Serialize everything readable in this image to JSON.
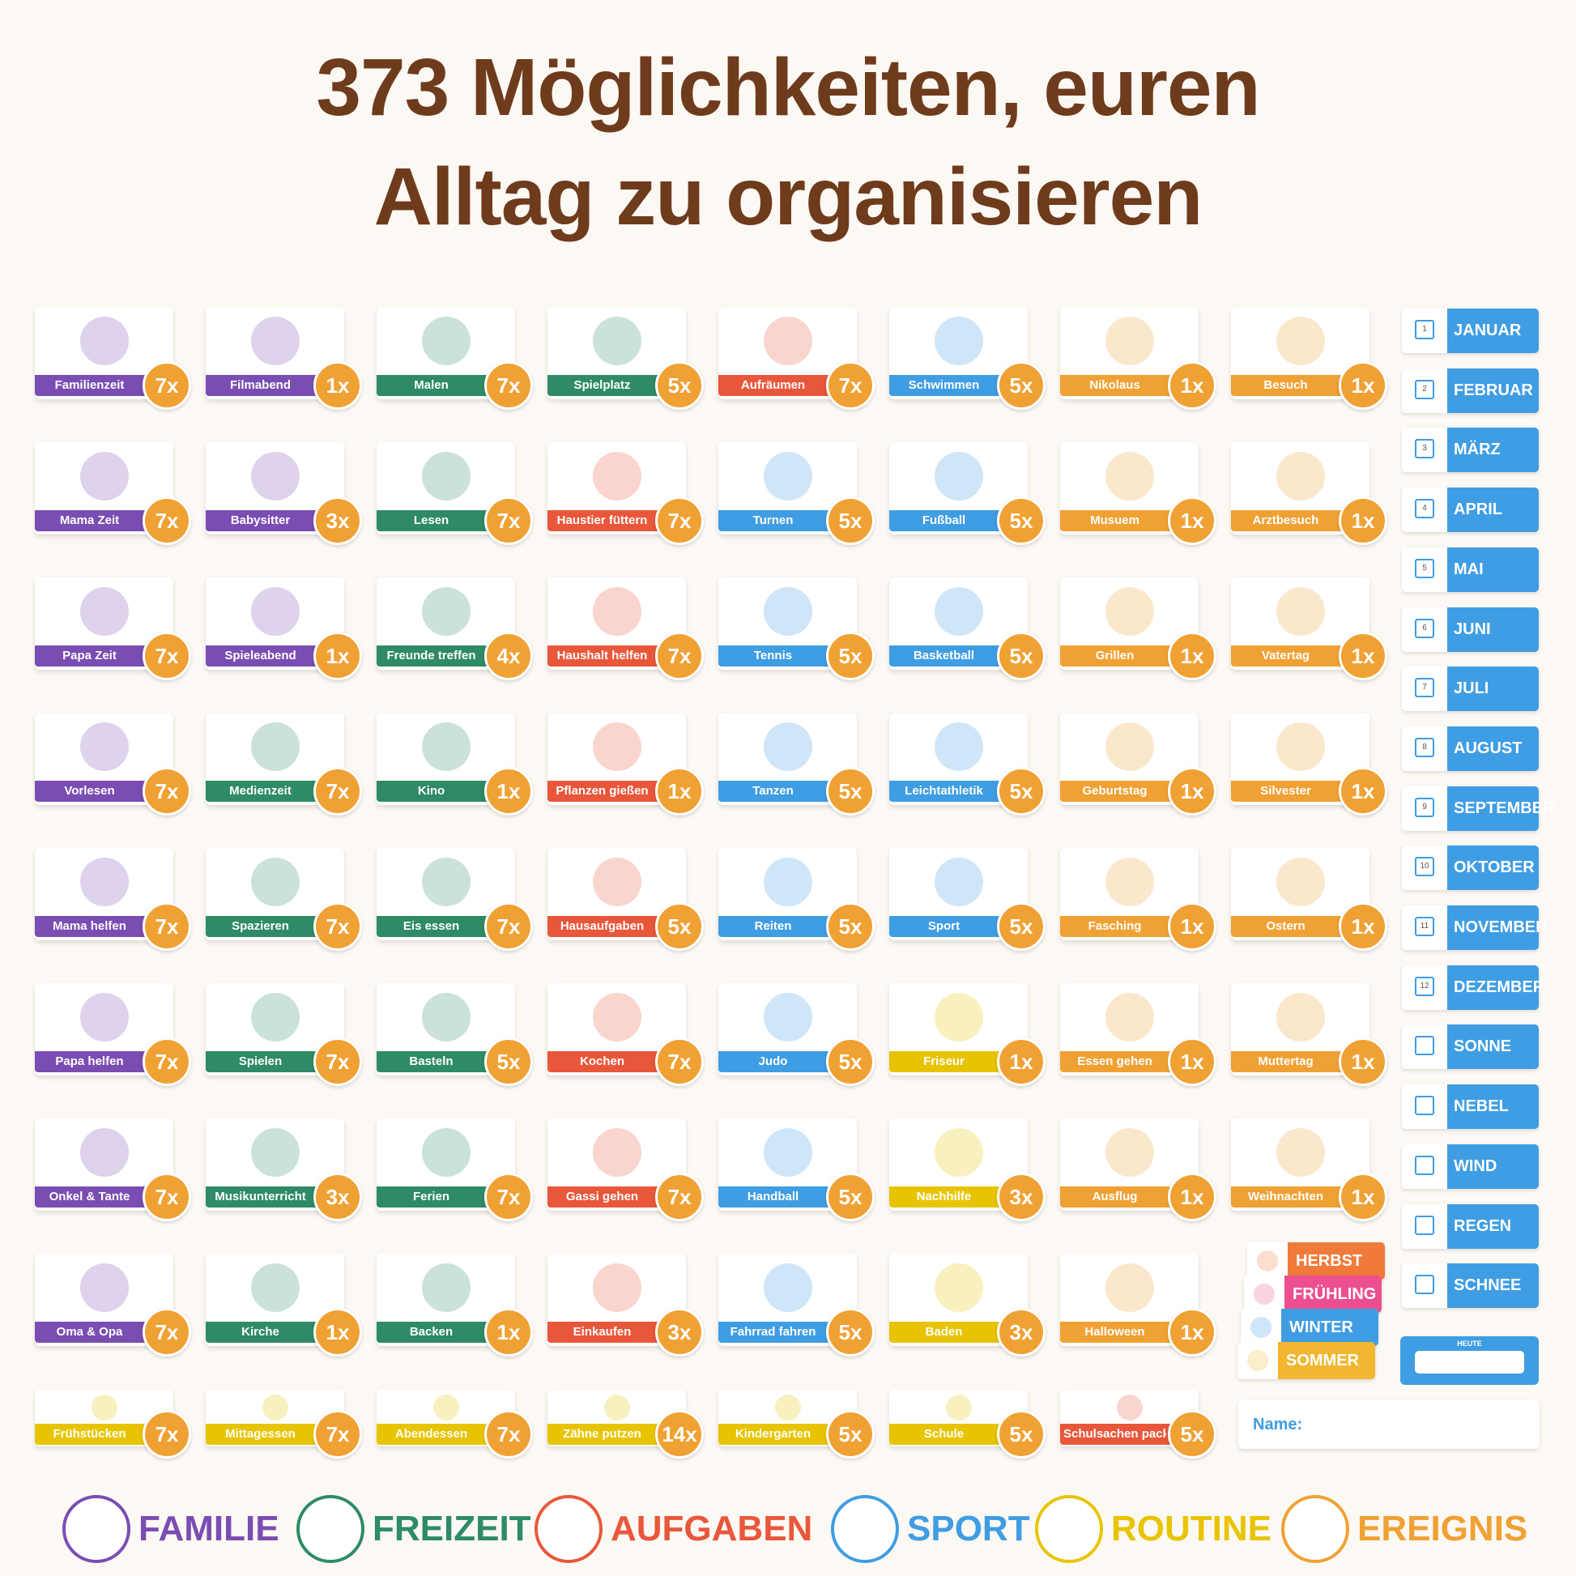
{
  "title_lines": [
    "373 Möglichkeiten, euren",
    "Alltag zu organisieren"
  ],
  "badge_color": "#f0a134",
  "card_rows": [
    [
      {
        "label": "Familienzeit",
        "count": "7x",
        "color": "#7a4db3"
      },
      {
        "label": "Filmabend",
        "count": "1x",
        "color": "#7a4db3"
      },
      {
        "label": "Malen",
        "count": "7x",
        "color": "#2e8b66"
      },
      {
        "label": "Spielplatz",
        "count": "5x",
        "color": "#2e8b66"
      },
      {
        "label": "Aufräumen",
        "count": "7x",
        "color": "#e9573b"
      },
      {
        "label": "Schwimmen",
        "count": "5x",
        "color": "#3f9de3"
      },
      {
        "label": "Nikolaus",
        "count": "1x",
        "color": "#f0a134"
      },
      {
        "label": "Besuch",
        "count": "1x",
        "color": "#f0a134"
      }
    ],
    [
      {
        "label": "Mama Zeit",
        "count": "7x",
        "color": "#7a4db3"
      },
      {
        "label": "Babysitter",
        "count": "3x",
        "color": "#7a4db3"
      },
      {
        "label": "Lesen",
        "count": "7x",
        "color": "#2e8b66"
      },
      {
        "label": "Haustier füttern",
        "count": "7x",
        "color": "#e9573b"
      },
      {
        "label": "Turnen",
        "count": "5x",
        "color": "#3f9de3"
      },
      {
        "label": "Fußball",
        "count": "5x",
        "color": "#3f9de3"
      },
      {
        "label": "Musuem",
        "count": "1x",
        "color": "#f0a134"
      },
      {
        "label": "Arztbesuch",
        "count": "1x",
        "color": "#f0a134"
      }
    ],
    [
      {
        "label": "Papa Zeit",
        "count": "7x",
        "color": "#7a4db3"
      },
      {
        "label": "Spieleabend",
        "count": "1x",
        "color": "#7a4db3"
      },
      {
        "label": "Freunde treffen",
        "count": "4x",
        "color": "#2e8b66"
      },
      {
        "label": "Haushalt helfen",
        "count": "7x",
        "color": "#e9573b"
      },
      {
        "label": "Tennis",
        "count": "5x",
        "color": "#3f9de3"
      },
      {
        "label": "Basketball",
        "count": "5x",
        "color": "#3f9de3"
      },
      {
        "label": "Grillen",
        "count": "1x",
        "color": "#f0a134"
      },
      {
        "label": "Vatertag",
        "count": "1x",
        "color": "#f0a134"
      }
    ],
    [
      {
        "label": "Vorlesen",
        "count": "7x",
        "color": "#7a4db3"
      },
      {
        "label": "Medienzeit",
        "count": "7x",
        "color": "#2e8b66"
      },
      {
        "label": "Kino",
        "count": "1x",
        "color": "#2e8b66"
      },
      {
        "label": "Pflanzen gießen",
        "count": "1x",
        "color": "#e9573b"
      },
      {
        "label": "Tanzen",
        "count": "5x",
        "color": "#3f9de3"
      },
      {
        "label": "Leichtathletik",
        "count": "5x",
        "color": "#3f9de3"
      },
      {
        "label": "Geburtstag",
        "count": "1x",
        "color": "#f0a134"
      },
      {
        "label": "Silvester",
        "count": "1x",
        "color": "#f0a134"
      }
    ],
    [
      {
        "label": "Mama helfen",
        "count": "7x",
        "color": "#7a4db3"
      },
      {
        "label": "Spazieren",
        "count": "7x",
        "color": "#2e8b66"
      },
      {
        "label": "Eis essen",
        "count": "7x",
        "color": "#2e8b66"
      },
      {
        "label": "Hausaufgaben",
        "count": "5x",
        "color": "#e9573b"
      },
      {
        "label": "Reiten",
        "count": "5x",
        "color": "#3f9de3"
      },
      {
        "label": "Sport",
        "count": "5x",
        "color": "#3f9de3"
      },
      {
        "label": "Fasching",
        "count": "1x",
        "color": "#f0a134"
      },
      {
        "label": "Ostern",
        "count": "1x",
        "color": "#f0a134"
      }
    ],
    [
      {
        "label": "Papa helfen",
        "count": "7x",
        "color": "#7a4db3"
      },
      {
        "label": "Spielen",
        "count": "7x",
        "color": "#2e8b66"
      },
      {
        "label": "Basteln",
        "count": "5x",
        "color": "#2e8b66"
      },
      {
        "label": "Kochen",
        "count": "7x",
        "color": "#e9573b"
      },
      {
        "label": "Judo",
        "count": "5x",
        "color": "#3f9de3"
      },
      {
        "label": "Friseur",
        "count": "1x",
        "color": "#e8c400"
      },
      {
        "label": "Essen gehen",
        "count": "1x",
        "color": "#f0a134"
      },
      {
        "label": "Muttertag",
        "count": "1x",
        "color": "#f0a134"
      }
    ],
    [
      {
        "label": "Onkel & Tante",
        "count": "7x",
        "color": "#7a4db3"
      },
      {
        "label": "Musikunterricht",
        "count": "3x",
        "color": "#2e8b66"
      },
      {
        "label": "Ferien",
        "count": "7x",
        "color": "#2e8b66"
      },
      {
        "label": "Gassi gehen",
        "count": "7x",
        "color": "#e9573b"
      },
      {
        "label": "Handball",
        "count": "5x",
        "color": "#3f9de3"
      },
      {
        "label": "Nachhilfe",
        "count": "3x",
        "color": "#e8c400"
      },
      {
        "label": "Ausflug",
        "count": "1x",
        "color": "#f0a134"
      },
      {
        "label": "Weihnachten",
        "count": "1x",
        "color": "#f0a134"
      }
    ],
    [
      {
        "label": "Oma & Opa",
        "count": "7x",
        "color": "#7a4db3"
      },
      {
        "label": "Kirche",
        "count": "1x",
        "color": "#2e8b66"
      },
      {
        "label": "Backen",
        "count": "1x",
        "color": "#2e8b66"
      },
      {
        "label": "Einkaufen",
        "count": "3x",
        "color": "#e9573b"
      },
      {
        "label": "Fahrrad fahren",
        "count": "5x",
        "color": "#3f9de3"
      },
      {
        "label": "Baden",
        "count": "3x",
        "color": "#e8c400"
      },
      {
        "label": "Halloween",
        "count": "1x",
        "color": "#f0a134"
      }
    ],
    [
      {
        "label": "Frühstücken",
        "count": "7x",
        "color": "#e8c400"
      },
      {
        "label": "Mittagessen",
        "count": "7x",
        "color": "#e8c400"
      },
      {
        "label": "Abendessen",
        "count": "7x",
        "color": "#e8c400"
      },
      {
        "label": "Zähne putzen",
        "count": "14x",
        "color": "#e8c400"
      },
      {
        "label": "Kindergarten",
        "count": "5x",
        "color": "#e8c400"
      },
      {
        "label": "Schule",
        "count": "5x",
        "color": "#e8c400"
      },
      {
        "label": "Schulsachen packen",
        "count": "5x",
        "color": "#e9573b"
      }
    ]
  ],
  "tag_color": "#3f9de3",
  "months": [
    {
      "day": 1,
      "label": "JANUAR"
    },
    {
      "day": 2,
      "label": "FEBRUAR"
    },
    {
      "day": 3,
      "label": "MÄRZ"
    },
    {
      "day": 4,
      "label": "APRIL"
    },
    {
      "day": 5,
      "label": "MAI"
    },
    {
      "day": 6,
      "label": "JUNI"
    },
    {
      "day": 7,
      "label": "JULI"
    },
    {
      "day": 8,
      "label": "AUGUST"
    },
    {
      "day": 9,
      "label": "SEPTEMBER"
    },
    {
      "day": 10,
      "label": "OKTOBER"
    },
    {
      "day": 11,
      "label": "NOVEMBER"
    },
    {
      "day": 12,
      "label": "DEZEMBER"
    }
  ],
  "weather": [
    "SONNE",
    "NEBEL",
    "WIND",
    "REGEN",
    "SCHNEE"
  ],
  "seasons": [
    {
      "label": "HERBST",
      "color": "#f07a3a"
    },
    {
      "label": "FRÜHLING",
      "color": "#ec4f8f"
    },
    {
      "label": "WINTER",
      "color": "#3f9de3"
    },
    {
      "label": "SOMMER",
      "color": "#f2b630"
    }
  ],
  "today_label": "HEUTE",
  "name_label": "Name:",
  "legend": [
    {
      "label": "FAMILIE",
      "color": "#7a4db3"
    },
    {
      "label": "FREIZEIT",
      "color": "#2e8b66"
    },
    {
      "label": "AUFGABEN",
      "color": "#e9573b"
    },
    {
      "label": "SPORT",
      "color": "#3f9de3"
    },
    {
      "label": "ROUTINE",
      "color": "#e8c400"
    },
    {
      "label": "EREIGNIS",
      "color": "#f0a134"
    }
  ]
}
